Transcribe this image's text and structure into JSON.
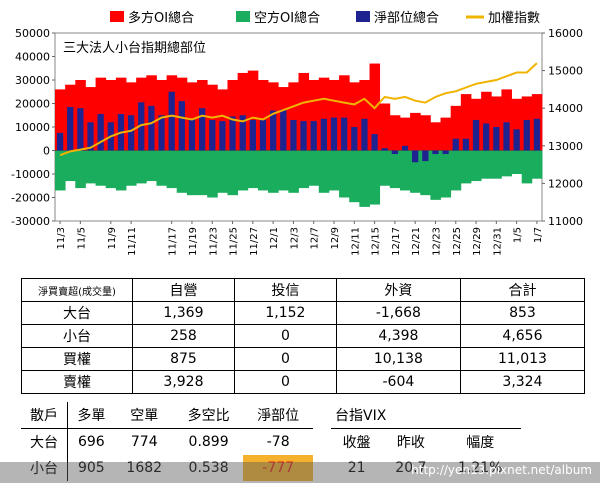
{
  "chart_data": {
    "type": "bar",
    "title": "三大法人小台指期總部位",
    "categories": [
      "11/3",
      "11/4",
      "11/5",
      "11/6",
      "11/7",
      "11/9",
      "11/10",
      "11/11",
      "11/12",
      "11/13",
      "11/16",
      "11/17",
      "11/18",
      "11/19",
      "11/20",
      "11/23",
      "11/24",
      "11/25",
      "11/26",
      "11/27",
      "11/30",
      "12/1",
      "12/2",
      "12/3",
      "12/4",
      "12/7",
      "12/8",
      "12/9",
      "12/10",
      "12/11",
      "12/14",
      "12/15",
      "12/16",
      "12/17",
      "12/18",
      "12/21",
      "12/22",
      "12/23",
      "12/24",
      "12/25",
      "12/28",
      "12/29",
      "12/30",
      "12/31",
      "1/4",
      "1/5",
      "1/6",
      "1/7"
    ],
    "x_tick_labels": [
      "11/3",
      "11/5",
      "11/9",
      "11/11",
      "11/17",
      "11/19",
      "11/23",
      "11/25",
      "11/27",
      "12/1",
      "12/3",
      "12/7",
      "12/9",
      "12/11",
      "12/15",
      "12/17",
      "12/21",
      "12/23",
      "12/25",
      "12/29",
      "12/31",
      "1/5",
      "1/7"
    ],
    "series": [
      {
        "name": "多方OI總合",
        "color": "#ff0000",
        "axis": "left",
        "values": [
          26000,
          28000,
          30000,
          27000,
          31000,
          30000,
          31000,
          29000,
          31000,
          32000,
          30000,
          32000,
          31000,
          29000,
          30000,
          28000,
          26000,
          30000,
          33000,
          34000,
          30000,
          29000,
          27000,
          29000,
          33000,
          30000,
          31000,
          30000,
          32000,
          29000,
          30000,
          37000,
          20000,
          15000,
          14000,
          16000,
          15000,
          12000,
          14000,
          19000,
          24000,
          22000,
          25000,
          23000,
          26000,
          22000,
          23000,
          24000
        ]
      },
      {
        "name": "空方OI總合",
        "color": "#1aad5e",
        "axis": "left",
        "values": [
          -17000,
          -13000,
          -16000,
          -14000,
          -15000,
          -16000,
          -17000,
          -15000,
          -14000,
          -13000,
          -15000,
          -16000,
          -18000,
          -19000,
          -19000,
          -20000,
          -18000,
          -19000,
          -17000,
          -16000,
          -17000,
          -18000,
          -17000,
          -18000,
          -16000,
          -15000,
          -18000,
          -17000,
          -20000,
          -22000,
          -24000,
          -23000,
          -15000,
          -16000,
          -17000,
          -18000,
          -19000,
          -21000,
          -20000,
          -17000,
          -14000,
          -13000,
          -12000,
          -12000,
          -11000,
          -10000,
          -14000,
          -12000
        ]
      },
      {
        "name": "淨部位總合",
        "color": "#1f2390",
        "axis": "left",
        "values": [
          7500,
          18500,
          18000,
          12000,
          15500,
          12000,
          15500,
          15000,
          20500,
          19000,
          15000,
          25000,
          21000,
          13500,
          18000,
          13000,
          12500,
          14500,
          15000,
          13000,
          13000,
          17000,
          17500,
          13000,
          12500,
          12500,
          13500,
          14000,
          14000,
          10000,
          13500,
          7000,
          1000,
          -1500,
          2000,
          -5000,
          -4500,
          -1500,
          -1500,
          5000,
          5000,
          13000,
          11500,
          10000,
          12000,
          9000,
          13000,
          13500
        ]
      },
      {
        "name": "加權指數",
        "color": "#f0b400",
        "axis": "right",
        "values": [
          12750,
          12850,
          12900,
          12950,
          13100,
          13250,
          13350,
          13400,
          13550,
          13600,
          13750,
          13800,
          13750,
          13700,
          13800,
          13750,
          13800,
          13700,
          13650,
          13750,
          13700,
          13850,
          13950,
          14050,
          14150,
          14200,
          14250,
          14200,
          14150,
          14100,
          14250,
          14000,
          14300,
          14250,
          14300,
          14200,
          14150,
          14300,
          14400,
          14450,
          14550,
          14650,
          14700,
          14750,
          14850,
          14950,
          14950,
          15200
        ]
      }
    ],
    "left_axis": {
      "min": -30000,
      "max": 50000,
      "ticks": [
        "50000",
        "40000",
        "30000",
        "20000",
        "10000",
        "0",
        "-10000",
        "-20000",
        "-30000"
      ]
    },
    "right_axis": {
      "min": 11000,
      "max": 16000,
      "ticks": [
        "16000",
        "15000",
        "14000",
        "13000",
        "12000",
        "11000"
      ]
    },
    "legend_position": "top"
  },
  "trade_table": {
    "corner": "淨買賣超(成交量)",
    "headers": [
      "自營",
      "投信",
      "外資",
      "合計"
    ],
    "rows": [
      {
        "label": "大台",
        "values": [
          "1,369",
          "1,152",
          "-1,668",
          "853"
        ]
      },
      {
        "label": "小台",
        "values": [
          "258",
          "0",
          "4,398",
          "4,656"
        ]
      },
      {
        "label": "買權",
        "values": [
          "875",
          "0",
          "10,138",
          "11,013"
        ]
      },
      {
        "label": "賣權",
        "values": [
          "3,928",
          "0",
          "-604",
          "3,324"
        ]
      }
    ]
  },
  "retail_table": {
    "corner": "散戶",
    "headers": [
      "多單",
      "空單",
      "多空比",
      "淨部位"
    ],
    "rows": [
      {
        "label": "大台",
        "values": [
          "696",
          "774",
          "0.899",
          "-78"
        ]
      },
      {
        "label": "小台",
        "values": [
          "905",
          "1682",
          "0.538",
          "-777"
        ]
      }
    ]
  },
  "vix_table": {
    "title": "台指VIX",
    "headers": [
      "收盤",
      "昨收",
      "幅度"
    ],
    "values": [
      "21",
      "20.7",
      "1.21%"
    ]
  },
  "watermark": "http://yen13.pixnet.net/album"
}
